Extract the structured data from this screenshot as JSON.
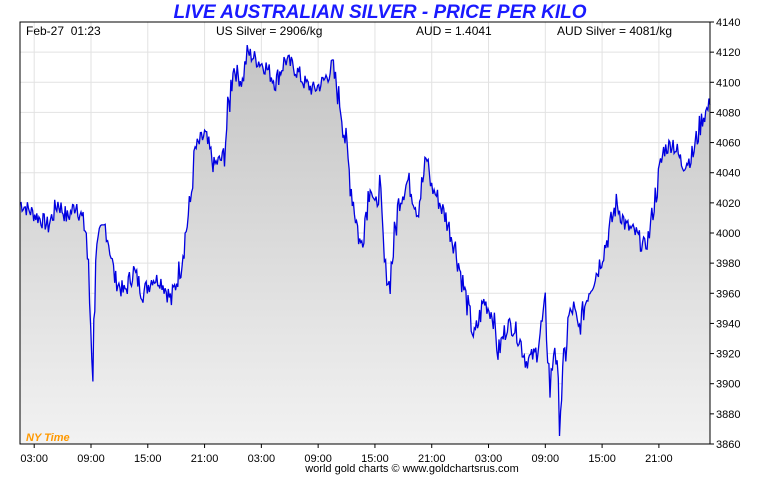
{
  "colors": {
    "title": "#1a1aff",
    "line": "#0000e0",
    "timezone_label": "#ff9900",
    "fill_top": "#c4c4c4",
    "fill_bottom": "#f2f2f2",
    "grid": "#e2e2e2"
  },
  "header": {
    "date_time": "Feb-27  01:23",
    "us_silver": "US Silver = 2906/kg",
    "aud_rate": "AUD = 1.4041",
    "aud_silver": "AUD Silver = 4081/kg"
  },
  "timezone_label": "NY Time",
  "credit": "world gold charts © www.goldchartsrus.com",
  "chart_data": {
    "type": "area",
    "title": "LIVE AUSTRALIAN SILVER - PRICE PER KILO",
    "xlabel": "",
    "ylabel": "",
    "ylim": [
      3860,
      4140
    ],
    "y_ticks": [
      3860,
      3880,
      3900,
      3920,
      3940,
      3960,
      3980,
      4000,
      4020,
      4040,
      4060,
      4080,
      4100,
      4120,
      4140
    ],
    "x_ticks": [
      "03:00",
      "09:00",
      "15:00",
      "21:00",
      "03:00",
      "09:00",
      "15:00",
      "21:00",
      "03:00",
      "09:00",
      "15:00",
      "21:00"
    ],
    "x_tick_hours": [
      0,
      6,
      12,
      18,
      24,
      30,
      36,
      42,
      48,
      54,
      60,
      66
    ],
    "x_unit": "hours after first 03:00 tick (NY Time)",
    "xlim": [
      -1.5,
      71.4
    ],
    "grid": true,
    "series": [
      {
        "values_hours": [
          -1.5,
          -0.5,
          0.5,
          1.5,
          2.5,
          3.5,
          4.5,
          5.5,
          6.2,
          6.5,
          7.0,
          7.5,
          8.0,
          8.5,
          9.5,
          10.5,
          11.5,
          12.5,
          13.5,
          14.5,
          15.5,
          16.5,
          17.0,
          18.0,
          19.0,
          20.0,
          21.0,
          22.0,
          22.5,
          23.5,
          24.5,
          25.5,
          26.5,
          27.5,
          28.5,
          29.5,
          30.5,
          31.5,
          32.5,
          33.5,
          34.5,
          35.5,
          36.0,
          36.5,
          37.0,
          37.5,
          38.5,
          39.5,
          40.5,
          41.5,
          42.0,
          42.5,
          43.5,
          44.5,
          45.5,
          46.5,
          47.5,
          48.5,
          49.0,
          50.0,
          51.0,
          52.0,
          53.0,
          54.0,
          54.5,
          55.0,
          55.5,
          56.5,
          57.0,
          57.5,
          58.5,
          59.5,
          60.5,
          61.5,
          62.5,
          63.5,
          64.5,
          65.0,
          65.5,
          66.5,
          67.5,
          68.5,
          69.5,
          70.5,
          71.4
        ],
        "values": [
          4020,
          4015,
          4010,
          4005,
          4020,
          4010,
          4020,
          4000,
          3910,
          3985,
          4000,
          4005,
          3990,
          3970,
          3960,
          3975,
          3960,
          3970,
          3968,
          3955,
          3980,
          4020,
          4055,
          4065,
          4045,
          4050,
          4110,
          4100,
          4120,
          4115,
          4110,
          4100,
          4115,
          4110,
          4100,
          4095,
          4100,
          4110,
          4080,
          4030,
          3990,
          4035,
          4015,
          4030,
          3980,
          3965,
          4020,
          4035,
          4015,
          4050,
          4030,
          4025,
          4010,
          3990,
          3960,
          3930,
          3955,
          3945,
          3920,
          3940,
          3935,
          3915,
          3920,
          3950,
          3895,
          3930,
          3880,
          3945,
          3950,
          3935,
          3960,
          3975,
          3995,
          4020,
          4005,
          4000,
          3990,
          4000,
          4020,
          4055,
          4060,
          4045,
          4050,
          4075,
          4085
        ]
      }
    ]
  }
}
